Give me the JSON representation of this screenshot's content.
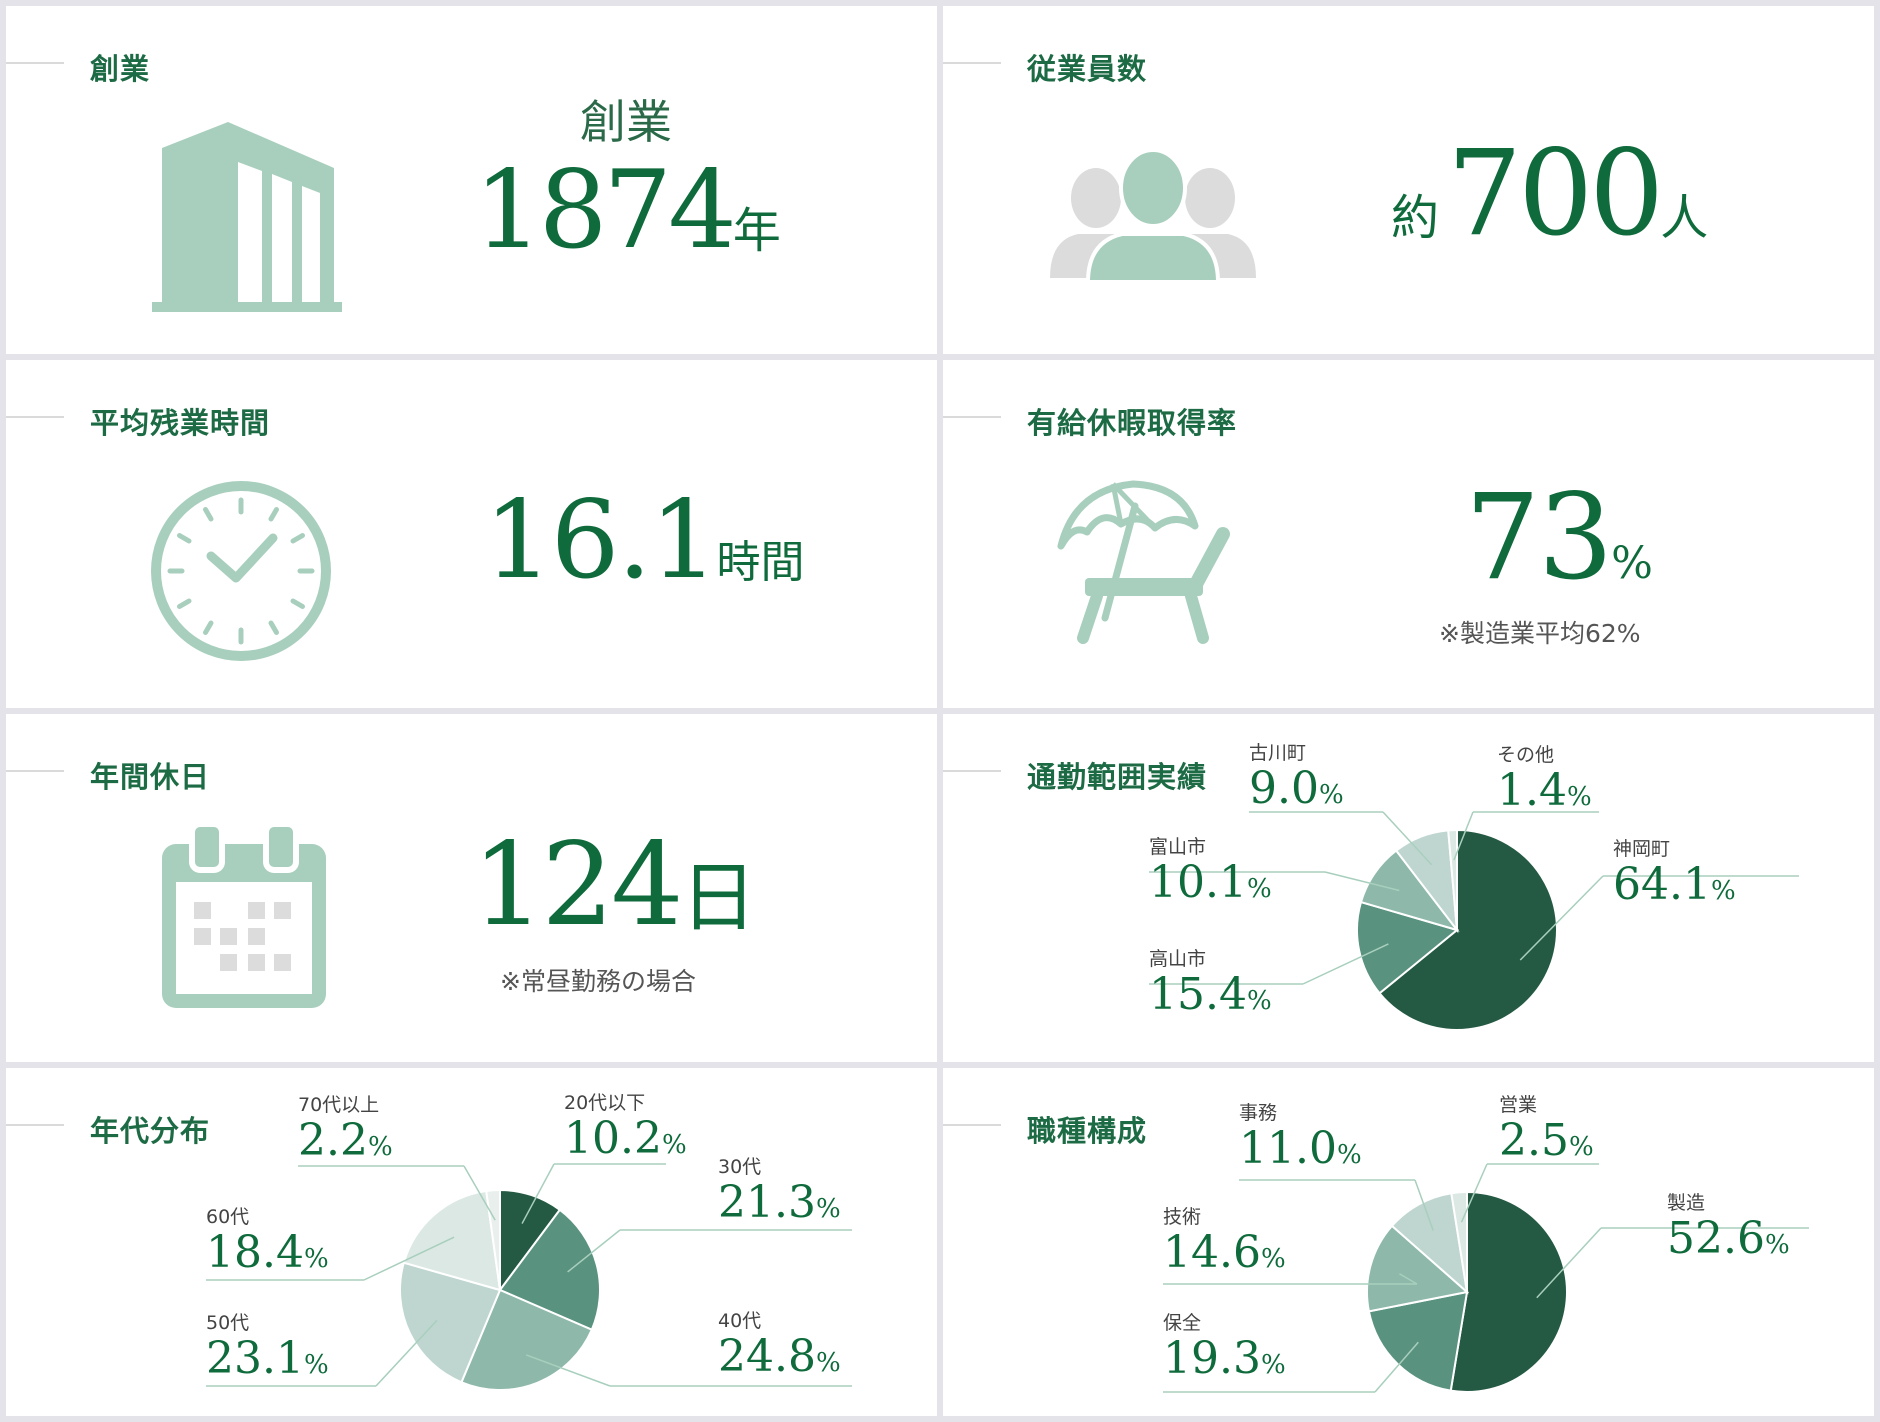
{
  "cards": {
    "founding": {
      "title": "創業",
      "label": "創業",
      "value": "1874",
      "unit": "年"
    },
    "employees": {
      "title": "従業員数",
      "prefix": "約",
      "value": "700",
      "unit": "人"
    },
    "overtime": {
      "title": "平均残業時間",
      "value": "16.1",
      "unit": "時間"
    },
    "paid_leave": {
      "title": "有給休暇取得率",
      "value": "73",
      "unit": "%",
      "note": "※製造業平均62%"
    },
    "holidays": {
      "title": "年間休日",
      "value": "124",
      "unit": "日",
      "note": "※常昼勤務の場合"
    },
    "commute": {
      "title": "通勤範囲実績"
    },
    "ages": {
      "title": "年代分布"
    },
    "jobs": {
      "title": "職種構成"
    }
  },
  "colors": {
    "title": "#1d6b45",
    "number": "#0f6b3c",
    "icon": "#a8cfbd",
    "icon_gray": "#dcdcdc",
    "pie_shades": [
      "#245a43",
      "#5a9280",
      "#8db8aa",
      "#bfd6d0",
      "#dce8e4",
      "#e9efed"
    ]
  },
  "icons": {
    "founding": "building-icon",
    "employees": "people-icon",
    "overtime": "clock-icon",
    "paid_leave": "beach-chair-umbrella-icon",
    "holidays": "calendar-icon"
  },
  "chart_data": [
    {
      "type": "pie",
      "chart": "commute",
      "categories": [
        "神岡町",
        "高山市",
        "富山市",
        "古川町",
        "その他"
      ],
      "values": [
        64.1,
        15.4,
        10.1,
        9.0,
        1.4
      ],
      "labels": [
        "64.1",
        "15.4",
        "10.1",
        "9.0",
        "1.4"
      ],
      "unit": "%"
    },
    {
      "type": "pie",
      "chart": "ages",
      "categories": [
        "20代以下",
        "30代",
        "40代",
        "50代",
        "60代",
        "70代以上"
      ],
      "values": [
        10.2,
        21.3,
        24.8,
        23.1,
        18.4,
        2.2
      ],
      "labels": [
        "10.2",
        "21.3",
        "24.8",
        "23.1",
        "18.4",
        "2.2"
      ],
      "unit": "%"
    },
    {
      "type": "pie",
      "chart": "jobs",
      "categories": [
        "製造",
        "保全",
        "技術",
        "事務",
        "営業"
      ],
      "values": [
        52.6,
        19.3,
        14.6,
        11.0,
        2.5
      ],
      "labels": [
        "52.6",
        "19.3",
        "14.6",
        "11.0",
        "2.5"
      ],
      "unit": "%"
    }
  ]
}
